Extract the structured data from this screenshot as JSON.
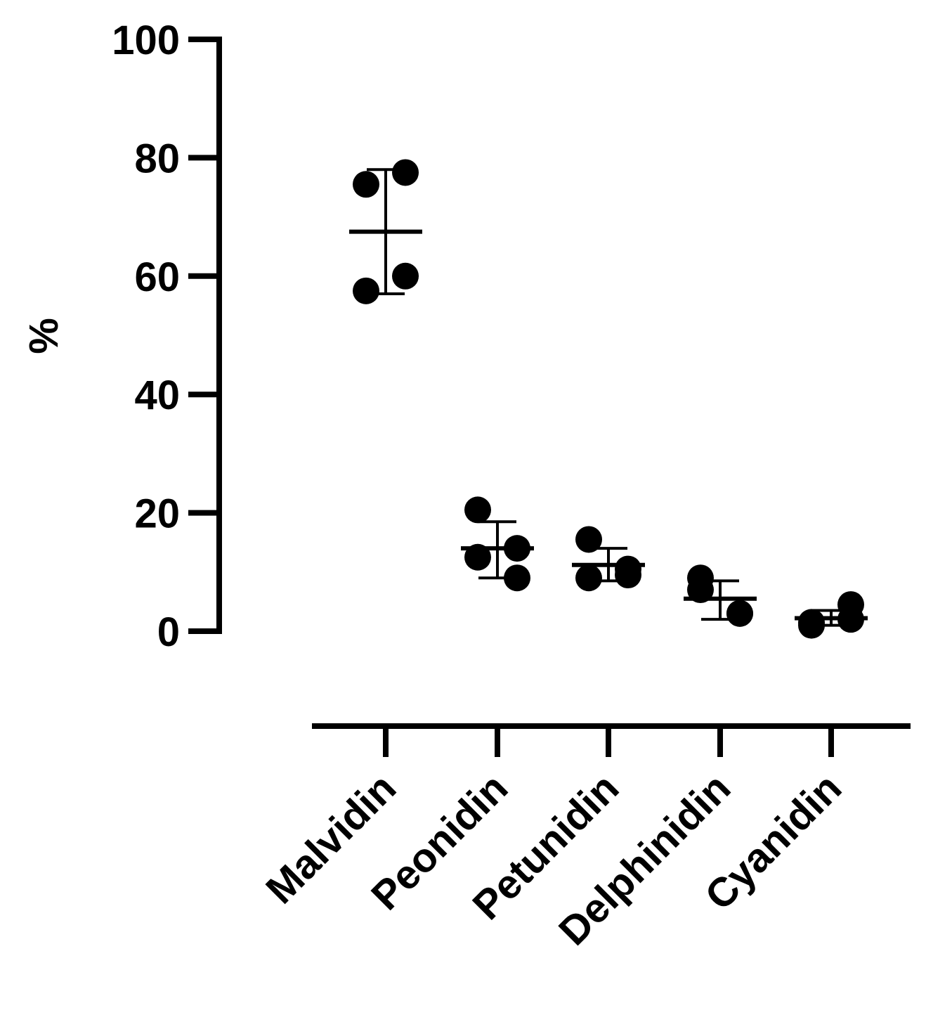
{
  "chart_data": {
    "type": "scatter",
    "ylabel": "%",
    "xlabel": "",
    "ylim": [
      0,
      100
    ],
    "yticks": [
      0,
      20,
      40,
      60,
      80,
      100
    ],
    "grid": false,
    "legend": "none",
    "marker_color": "#000000",
    "categories": [
      "Malvidin",
      "Peonidin",
      "Petunidin",
      "Delphinidin",
      "Cyanidin"
    ],
    "groups": [
      {
        "category": "Malvidin",
        "points": [
          75.5,
          77.5,
          57.5,
          60
        ],
        "mean": 67.5,
        "sd_low": 57,
        "sd_high": 78
      },
      {
        "category": "Peonidin",
        "points": [
          20.5,
          14,
          12.5,
          9
        ],
        "mean": 14,
        "sd_low": 9,
        "sd_high": 18.5
      },
      {
        "category": "Petunidin",
        "points": [
          9,
          10.5,
          15.5,
          9.5
        ],
        "mean": 11.2,
        "sd_low": 8.5,
        "sd_high": 14
      },
      {
        "category": "Delphinidin",
        "points": [
          7,
          3,
          9,
          3
        ],
        "mean": 5.5,
        "sd_low": 2,
        "sd_high": 8.5
      },
      {
        "category": "Cyanidin",
        "points": [
          1,
          4.5,
          1.5,
          2
        ],
        "mean": 2.2,
        "sd_low": 1,
        "sd_high": 3.5
      }
    ]
  }
}
